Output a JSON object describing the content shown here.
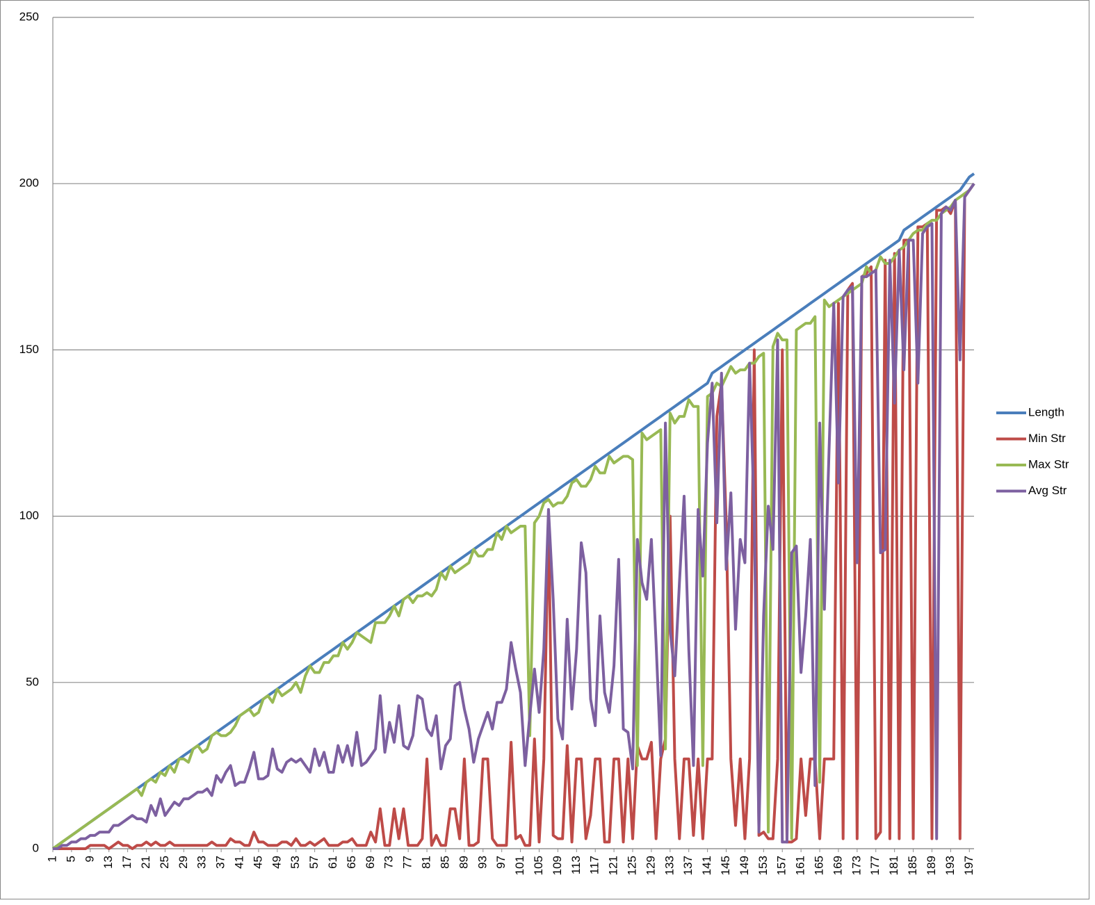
{
  "chart_data": {
    "type": "line",
    "categories": [
      1,
      null,
      null,
      null,
      5,
      null,
      null,
      null,
      9,
      null,
      null,
      null,
      13,
      null,
      null,
      null,
      17,
      null,
      null,
      null,
      21,
      null,
      null,
      null,
      25,
      null,
      null,
      null,
      29,
      null,
      null,
      null,
      33,
      null,
      null,
      null,
      37,
      null,
      null,
      null,
      41,
      null,
      null,
      null,
      45,
      null,
      null,
      null,
      49,
      null,
      null,
      null,
      53,
      null,
      null,
      null,
      57,
      null,
      null,
      null,
      61,
      null,
      null,
      null,
      65,
      null,
      null,
      null,
      69,
      null,
      null,
      null,
      73,
      null,
      null,
      null,
      77,
      null,
      null,
      null,
      81,
      null,
      null,
      null,
      85,
      null,
      null,
      null,
      89,
      null,
      null,
      null,
      93,
      null,
      null,
      null,
      97,
      null,
      null,
      null,
      101,
      null,
      null,
      null,
      105,
      null,
      null,
      null,
      109,
      null,
      null,
      null,
      113,
      null,
      null,
      null,
      117,
      null,
      null,
      null,
      121,
      null,
      null,
      null,
      125,
      null,
      null,
      null,
      129,
      null,
      null,
      null,
      133,
      null,
      null,
      null,
      137,
      null,
      null,
      null,
      141,
      null,
      null,
      null,
      145,
      null,
      null,
      null,
      149,
      null,
      null,
      null,
      153,
      null,
      null,
      null,
      157,
      null,
      null,
      null,
      161,
      null,
      null,
      null,
      165,
      null,
      null,
      null,
      169,
      null,
      null,
      null,
      173,
      null,
      null,
      null,
      177,
      null,
      null,
      null,
      181,
      null,
      null,
      null,
      185,
      null,
      null,
      null,
      189,
      null,
      null,
      null,
      193,
      null,
      null,
      null,
      197,
      null
    ],
    "series": [
      {
        "name": "Length",
        "color": "#4a7ebb",
        "values": [
          0,
          1,
          2,
          3,
          4,
          5,
          6,
          7,
          8,
          9,
          10,
          11,
          12,
          13,
          14,
          15,
          16,
          17,
          18,
          19,
          20,
          21,
          22,
          23,
          24,
          25,
          26,
          27,
          28,
          29,
          30,
          31,
          32,
          33,
          34,
          35,
          36,
          37,
          38,
          39,
          40,
          41,
          42,
          43,
          44,
          45,
          46,
          47,
          48,
          49,
          50,
          51,
          52,
          53,
          54,
          55,
          56,
          57,
          58,
          59,
          60,
          61,
          62,
          63,
          64,
          65,
          66,
          67,
          68,
          69,
          70,
          71,
          72,
          73,
          74,
          75,
          76,
          77,
          78,
          79,
          80,
          81,
          82,
          83,
          84,
          85,
          86,
          87,
          88,
          89,
          90,
          91,
          92,
          93,
          94,
          95,
          96,
          97,
          98,
          99,
          100,
          101,
          102,
          103,
          104,
          105,
          106,
          107,
          108,
          109,
          110,
          111,
          112,
          113,
          114,
          115,
          116,
          117,
          118,
          119,
          120,
          121,
          122,
          123,
          124,
          125,
          126,
          127,
          128,
          129,
          130,
          131,
          132,
          133,
          134,
          135,
          136,
          137,
          138,
          139,
          140,
          143,
          144,
          145,
          146,
          147,
          148,
          149,
          150,
          151,
          152,
          153,
          154,
          155,
          156,
          157,
          158,
          159,
          160,
          161,
          162,
          163,
          164,
          165,
          166,
          167,
          168,
          169,
          170,
          171,
          172,
          173,
          174,
          175,
          176,
          177,
          178,
          179,
          180,
          181,
          182,
          183,
          186,
          187,
          188,
          189,
          190,
          191,
          192,
          193,
          194,
          195,
          196,
          197,
          198,
          200,
          202,
          203
        ]
      },
      {
        "name": "Min Str",
        "color": "#be4b48",
        "values": [
          0,
          0,
          0,
          0,
          0,
          0,
          0,
          0,
          1,
          1,
          1,
          1,
          0,
          1,
          2,
          1,
          1,
          0,
          1,
          1,
          2,
          1,
          2,
          1,
          1,
          2,
          1,
          1,
          1,
          1,
          1,
          1,
          1,
          1,
          2,
          1,
          1,
          1,
          3,
          2,
          2,
          1,
          1,
          5,
          2,
          2,
          1,
          1,
          1,
          2,
          2,
          1,
          3,
          1,
          1,
          2,
          1,
          2,
          3,
          1,
          1,
          1,
          2,
          2,
          3,
          1,
          1,
          1,
          5,
          2,
          12,
          1,
          1,
          12,
          3,
          12,
          1,
          1,
          1,
          3,
          27,
          1,
          4,
          1,
          1,
          12,
          12,
          3,
          27,
          1,
          1,
          2,
          27,
          27,
          3,
          1,
          1,
          1,
          32,
          3,
          4,
          1,
          1,
          33,
          2,
          27,
          100,
          4,
          3,
          3,
          31,
          2,
          27,
          27,
          3,
          10,
          27,
          27,
          2,
          2,
          27,
          27,
          2,
          27,
          3,
          31,
          27,
          27,
          32,
          3,
          27,
          33,
          100,
          27,
          3,
          27,
          27,
          4,
          27,
          3,
          27,
          27,
          130,
          140,
          98,
          27,
          7,
          27,
          3,
          27,
          150,
          4,
          5,
          3,
          3,
          27,
          150,
          2,
          2,
          3,
          27,
          10,
          27,
          27,
          3,
          27,
          27,
          27,
          164,
          3,
          168,
          170,
          3,
          172,
          173,
          175,
          3,
          5,
          177,
          3,
          179,
          3,
          183,
          183,
          3,
          187,
          187,
          188,
          3,
          192,
          192,
          193,
          191,
          195,
          3,
          196,
          198,
          200
        ]
      },
      {
        "name": "Max Str",
        "color": "#98b954",
        "values": [
          0,
          1,
          2,
          3,
          4,
          5,
          6,
          7,
          8,
          9,
          10,
          11,
          12,
          13,
          14,
          15,
          16,
          17,
          18,
          16,
          20,
          21,
          20,
          23,
          22,
          25,
          23,
          27,
          27,
          26,
          30,
          31,
          29,
          30,
          34,
          35,
          34,
          34,
          35,
          37,
          40,
          41,
          42,
          40,
          41,
          45,
          46,
          44,
          48,
          46,
          47,
          48,
          50,
          47,
          52,
          55,
          53,
          53,
          56,
          56,
          58,
          58,
          62,
          60,
          62,
          65,
          64,
          63,
          62,
          68,
          68,
          68,
          70,
          73,
          70,
          75,
          76,
          74,
          76,
          76,
          77,
          76,
          78,
          83,
          81,
          85,
          83,
          84,
          85,
          86,
          90,
          88,
          88,
          90,
          90,
          95,
          93,
          97,
          95,
          96,
          97,
          97,
          34,
          98,
          100,
          104,
          105,
          103,
          104,
          104,
          106,
          110,
          111,
          109,
          109,
          111,
          115,
          113,
          113,
          118,
          116,
          117,
          118,
          118,
          117,
          25,
          125,
          123,
          124,
          125,
          126,
          30,
          131,
          128,
          130,
          130,
          135,
          133,
          133,
          25,
          136,
          137,
          140,
          139,
          142,
          145,
          143,
          144,
          144,
          146,
          146,
          148,
          149,
          5,
          151,
          155,
          153,
          153,
          3,
          156,
          157,
          158,
          158,
          160,
          20,
          165,
          163,
          164,
          165,
          166,
          167,
          168,
          169,
          170,
          175,
          173,
          174,
          178,
          176,
          176,
          178,
          180,
          181,
          183,
          185,
          186,
          186,
          188,
          189,
          189,
          191,
          192,
          193,
          195,
          196,
          197,
          198,
          200
        ]
      },
      {
        "name": "Avg Str",
        "color": "#7d60a0",
        "values": [
          0,
          0,
          1,
          1,
          2,
          2,
          3,
          3,
          4,
          4,
          5,
          5,
          5,
          7,
          7,
          8,
          9,
          10,
          9,
          9,
          8,
          13,
          10,
          15,
          10,
          12,
          14,
          13,
          15,
          15,
          16,
          17,
          17,
          18,
          16,
          22,
          20,
          23,
          25,
          19,
          20,
          20,
          24,
          29,
          21,
          21,
          22,
          30,
          24,
          23,
          26,
          27,
          26,
          27,
          25,
          23,
          30,
          25,
          29,
          23,
          23,
          31,
          26,
          31,
          25,
          35,
          25,
          26,
          28,
          30,
          46,
          29,
          38,
          32,
          43,
          31,
          30,
          34,
          46,
          45,
          36,
          34,
          40,
          24,
          31,
          33,
          49,
          50,
          42,
          36,
          26,
          33,
          37,
          41,
          36,
          44,
          44,
          48,
          62,
          54,
          47,
          25,
          40,
          54,
          41,
          60,
          102,
          75,
          39,
          33,
          69,
          42,
          60,
          92,
          83,
          45,
          37,
          70,
          47,
          41,
          55,
          87,
          36,
          35,
          24,
          93,
          80,
          75,
          93,
          62,
          28,
          128,
          66,
          52,
          80,
          106,
          60,
          25,
          102,
          82,
          122,
          140,
          98,
          143,
          84,
          107,
          66,
          93,
          86,
          146,
          100,
          5,
          70,
          103,
          90,
          153,
          2,
          2,
          89,
          91,
          53,
          70,
          93,
          19,
          128,
          72,
          120,
          164,
          110,
          166,
          168,
          169,
          86,
          172,
          172,
          173,
          174,
          89,
          90,
          177,
          134,
          180,
          144,
          183,
          183,
          140,
          185,
          187,
          188,
          3,
          191,
          193,
          192,
          195,
          147,
          196,
          198,
          200
        ]
      }
    ],
    "ylim": [
      0,
      250
    ],
    "yticks": [
      0,
      50,
      100,
      150,
      200,
      250
    ],
    "grid": true,
    "legend": "right"
  }
}
